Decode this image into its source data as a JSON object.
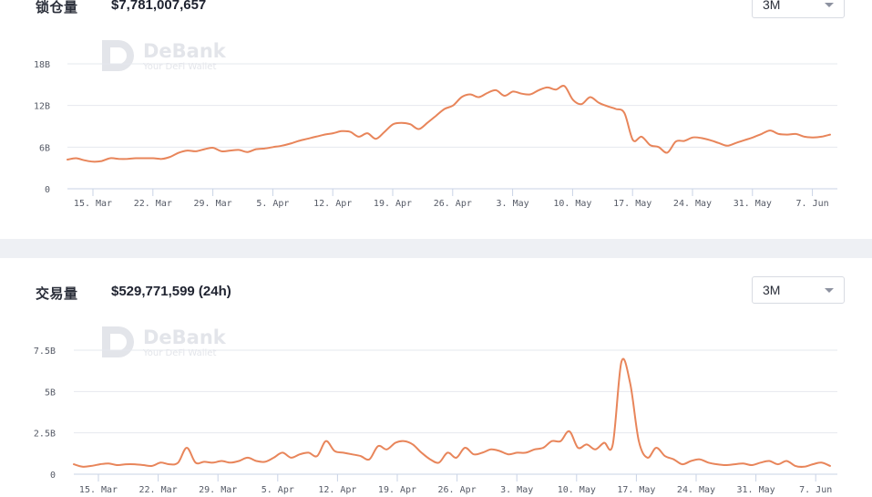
{
  "watermark": {
    "brand": "DeBank",
    "tagline": "Your DeFi Wallet"
  },
  "colors": {
    "line": "#e8855a",
    "grid": "#e6e8ee",
    "axis": "#c9d3e6",
    "divider": "#eef0f4"
  },
  "x_categories": [
    "15. Mar",
    "22. Mar",
    "29. Mar",
    "5. Apr",
    "12. Apr",
    "19. Apr",
    "26. Apr",
    "3. May",
    "10. May",
    "17. May",
    "24. May",
    "31. May",
    "7. Jun"
  ],
  "panels": {
    "tvl": {
      "label": "锁仓量",
      "value": "$7,781,007,657",
      "range": {
        "selected": "3M"
      }
    },
    "volume": {
      "label": "交易量",
      "value": "$529,771,599 (24h)",
      "range": {
        "selected": "3M"
      }
    }
  },
  "chart_data": [
    {
      "type": "line",
      "name": "tvl",
      "x_start": "11. Mar",
      "x_end": "10. Jun",
      "ylim": [
        0,
        18
      ],
      "y_ticks": [
        0,
        6,
        12,
        18
      ],
      "y_tick_labels": [
        "0",
        "6B",
        "12B",
        "18B"
      ],
      "x_tick_labels": [
        "15. Mar",
        "22. Mar",
        "29. Mar",
        "5. Apr",
        "12. Apr",
        "19. Apr",
        "26. Apr",
        "3. May",
        "10. May",
        "17. May",
        "24. May",
        "31. May",
        "7. Jun"
      ],
      "grid": true,
      "unit": "B",
      "values": [
        4.2,
        4.4,
        4.1,
        3.9,
        4.0,
        4.4,
        4.3,
        4.3,
        4.4,
        4.4,
        4.4,
        4.3,
        4.6,
        5.2,
        5.5,
        5.4,
        5.7,
        5.9,
        5.4,
        5.5,
        5.6,
        5.3,
        5.7,
        5.8,
        6.0,
        6.2,
        6.5,
        6.9,
        7.2,
        7.5,
        7.8,
        8.0,
        8.3,
        8.2,
        7.5,
        8.0,
        7.2,
        8.2,
        9.3,
        9.5,
        9.3,
        8.6,
        9.5,
        10.5,
        11.5,
        12.0,
        13.2,
        13.6,
        13.2,
        13.8,
        14.2,
        13.4,
        14.0,
        13.7,
        13.6,
        14.2,
        14.6,
        14.3,
        14.8,
        12.8,
        12.2,
        13.2,
        12.4,
        11.9,
        11.5,
        10.9,
        7.0,
        7.5,
        6.3,
        6.0,
        5.2,
        6.8,
        6.9,
        7.4,
        7.3,
        7.0,
        6.6,
        6.2,
        6.6,
        7.0,
        7.4,
        7.9,
        8.4,
        7.9,
        7.8,
        7.9,
        7.5,
        7.4,
        7.5,
        7.8
      ]
    },
    {
      "type": "line",
      "name": "volume",
      "x_start": "11. Mar",
      "x_end": "10. Jun",
      "ylim": [
        0,
        7.5
      ],
      "y_ticks": [
        0,
        2.5,
        5,
        7.5
      ],
      "y_tick_labels": [
        "0",
        "2.5B",
        "5B",
        "7.5B"
      ],
      "x_tick_labels": [
        "15. Mar",
        "22. Mar",
        "29. Mar",
        "5. Apr",
        "12. Apr",
        "19. Apr",
        "26. Apr",
        "3. May",
        "10. May",
        "17. May",
        "24. May",
        "31. May",
        "7. Jun"
      ],
      "grid": true,
      "unit": "B",
      "values": [
        0.6,
        0.45,
        0.5,
        0.6,
        0.65,
        0.55,
        0.6,
        0.6,
        0.55,
        0.5,
        0.7,
        0.6,
        0.7,
        1.6,
        0.7,
        0.75,
        0.7,
        0.8,
        0.7,
        0.8,
        1.0,
        0.8,
        0.75,
        1.0,
        1.3,
        1.0,
        1.2,
        1.3,
        1.1,
        2.0,
        1.4,
        1.3,
        1.2,
        1.1,
        0.9,
        1.7,
        1.5,
        1.9,
        2.0,
        1.8,
        1.3,
        0.9,
        0.7,
        1.3,
        1.0,
        1.6,
        1.2,
        1.3,
        1.5,
        1.4,
        1.2,
        1.3,
        1.3,
        1.5,
        1.6,
        2.0,
        2.0,
        2.6,
        1.6,
        1.8,
        1.5,
        1.9,
        1.8,
        6.8,
        5.5,
        2.0,
        1.0,
        1.6,
        1.1,
        0.9,
        0.6,
        0.8,
        0.9,
        0.7,
        0.6,
        0.55,
        0.6,
        0.65,
        0.55,
        0.7,
        0.8,
        0.6,
        0.8,
        0.5,
        0.45,
        0.6,
        0.7,
        0.5
      ]
    }
  ]
}
